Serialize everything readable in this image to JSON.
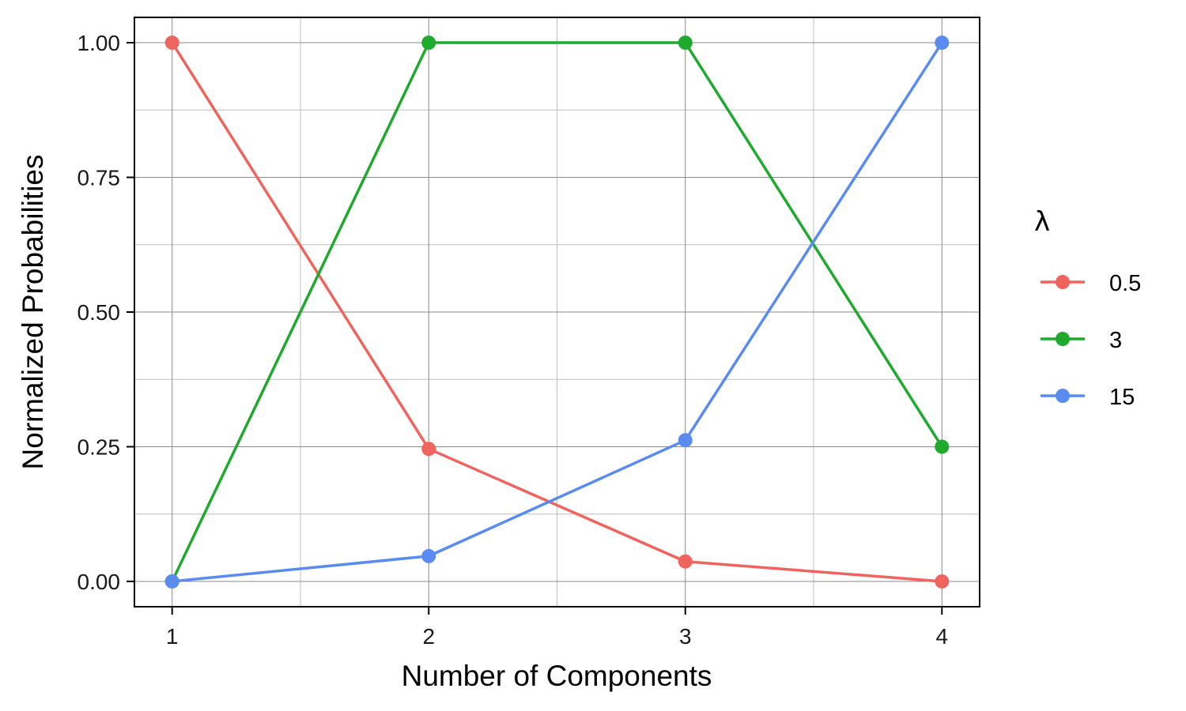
{
  "chart_data": {
    "type": "line",
    "title": "",
    "xlabel": "Number of Components",
    "ylabel": "Normalized Probabilities",
    "x": [
      1,
      2,
      3,
      4
    ],
    "xlim": [
      0.853,
      4.147
    ],
    "ylim": [
      -0.047,
      1.047
    ],
    "x_ticks": [
      "1",
      "2",
      "3",
      "4"
    ],
    "y_ticks": [
      "0.00",
      "0.25",
      "0.50",
      "0.75",
      "1.00"
    ],
    "y_tick_values": [
      0,
      0.25,
      0.5,
      0.75,
      1.0
    ],
    "grid": true,
    "legend": {
      "title": "λ",
      "position": "right"
    },
    "series": [
      {
        "name": "0.5",
        "color": "#F0645F",
        "values": [
          1.0,
          0.246,
          0.037,
          0.0
        ]
      },
      {
        "name": "3",
        "color": "#1FAA2E",
        "values": [
          0.0,
          1.0,
          1.0,
          0.25
        ]
      },
      {
        "name": "15",
        "color": "#5A8BF0",
        "values": [
          0.0,
          0.047,
          0.262,
          1.0
        ]
      }
    ]
  }
}
